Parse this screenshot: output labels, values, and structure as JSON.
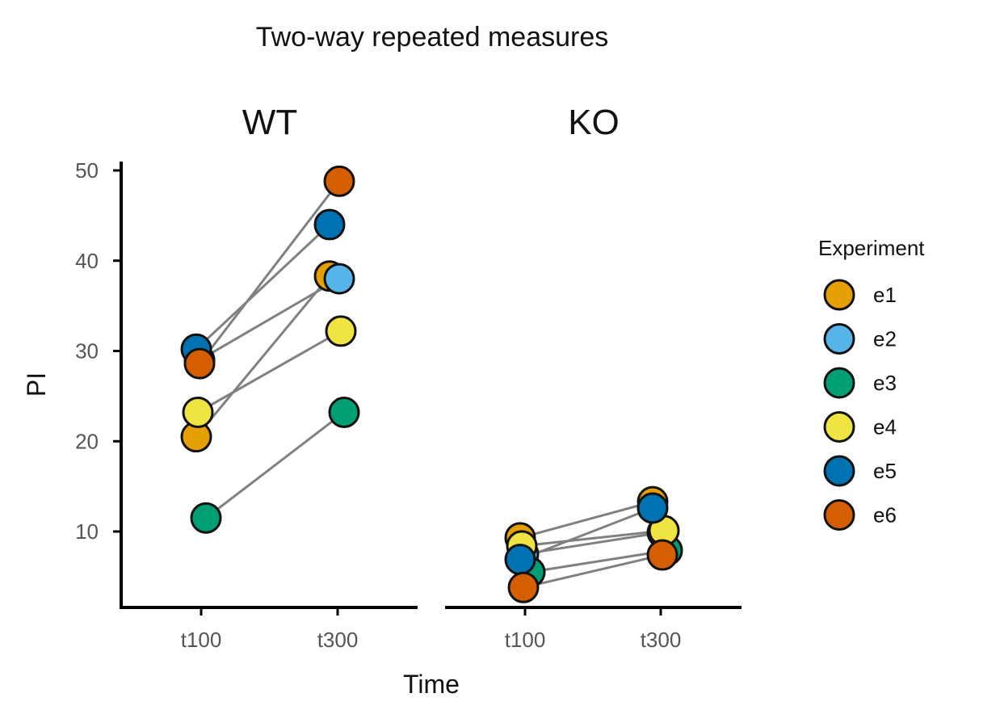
{
  "chart_data": {
    "type": "scatter",
    "title": "Two-way repeated measures",
    "xlabel": "Time",
    "ylabel": "PI",
    "ylim": [
      1.5,
      50.5
    ],
    "yticks": [
      10,
      20,
      30,
      40,
      50
    ],
    "categories": [
      "t100",
      "t300"
    ],
    "grid": false,
    "legend": {
      "title": "Experiment",
      "position": "right"
    },
    "facets": [
      {
        "label": "WT",
        "series": [
          {
            "name": "e1",
            "color": "#E69F00",
            "values": [
              20.5,
              38.3
            ]
          },
          {
            "name": "e2",
            "color": "#56B4E9",
            "values": [
              29.0,
              38.0
            ]
          },
          {
            "name": "e3",
            "color": "#009E73",
            "values": [
              11.5,
              23.2
            ]
          },
          {
            "name": "e4",
            "color": "#F0E442",
            "values": [
              23.2,
              32.2
            ]
          },
          {
            "name": "e5",
            "color": "#0072B2",
            "values": [
              30.2,
              44.0
            ]
          },
          {
            "name": "e6",
            "color": "#D55E00",
            "values": [
              28.6,
              48.8
            ]
          }
        ]
      },
      {
        "label": "KO",
        "series": [
          {
            "name": "e1",
            "color": "#E69F00",
            "values": [
              9.3,
              13.3
            ]
          },
          {
            "name": "e2",
            "color": "#56B4E9",
            "values": [
              7.5,
              9.9
            ]
          },
          {
            "name": "e3",
            "color": "#009E73",
            "values": [
              5.5,
              7.9
            ]
          },
          {
            "name": "e4",
            "color": "#F0E442",
            "values": [
              8.4,
              10.1
            ]
          },
          {
            "name": "e5",
            "color": "#0072B2",
            "values": [
              6.9,
              12.6
            ]
          },
          {
            "name": "e6",
            "color": "#D55E00",
            "values": [
              3.8,
              7.4
            ]
          }
        ]
      }
    ]
  }
}
